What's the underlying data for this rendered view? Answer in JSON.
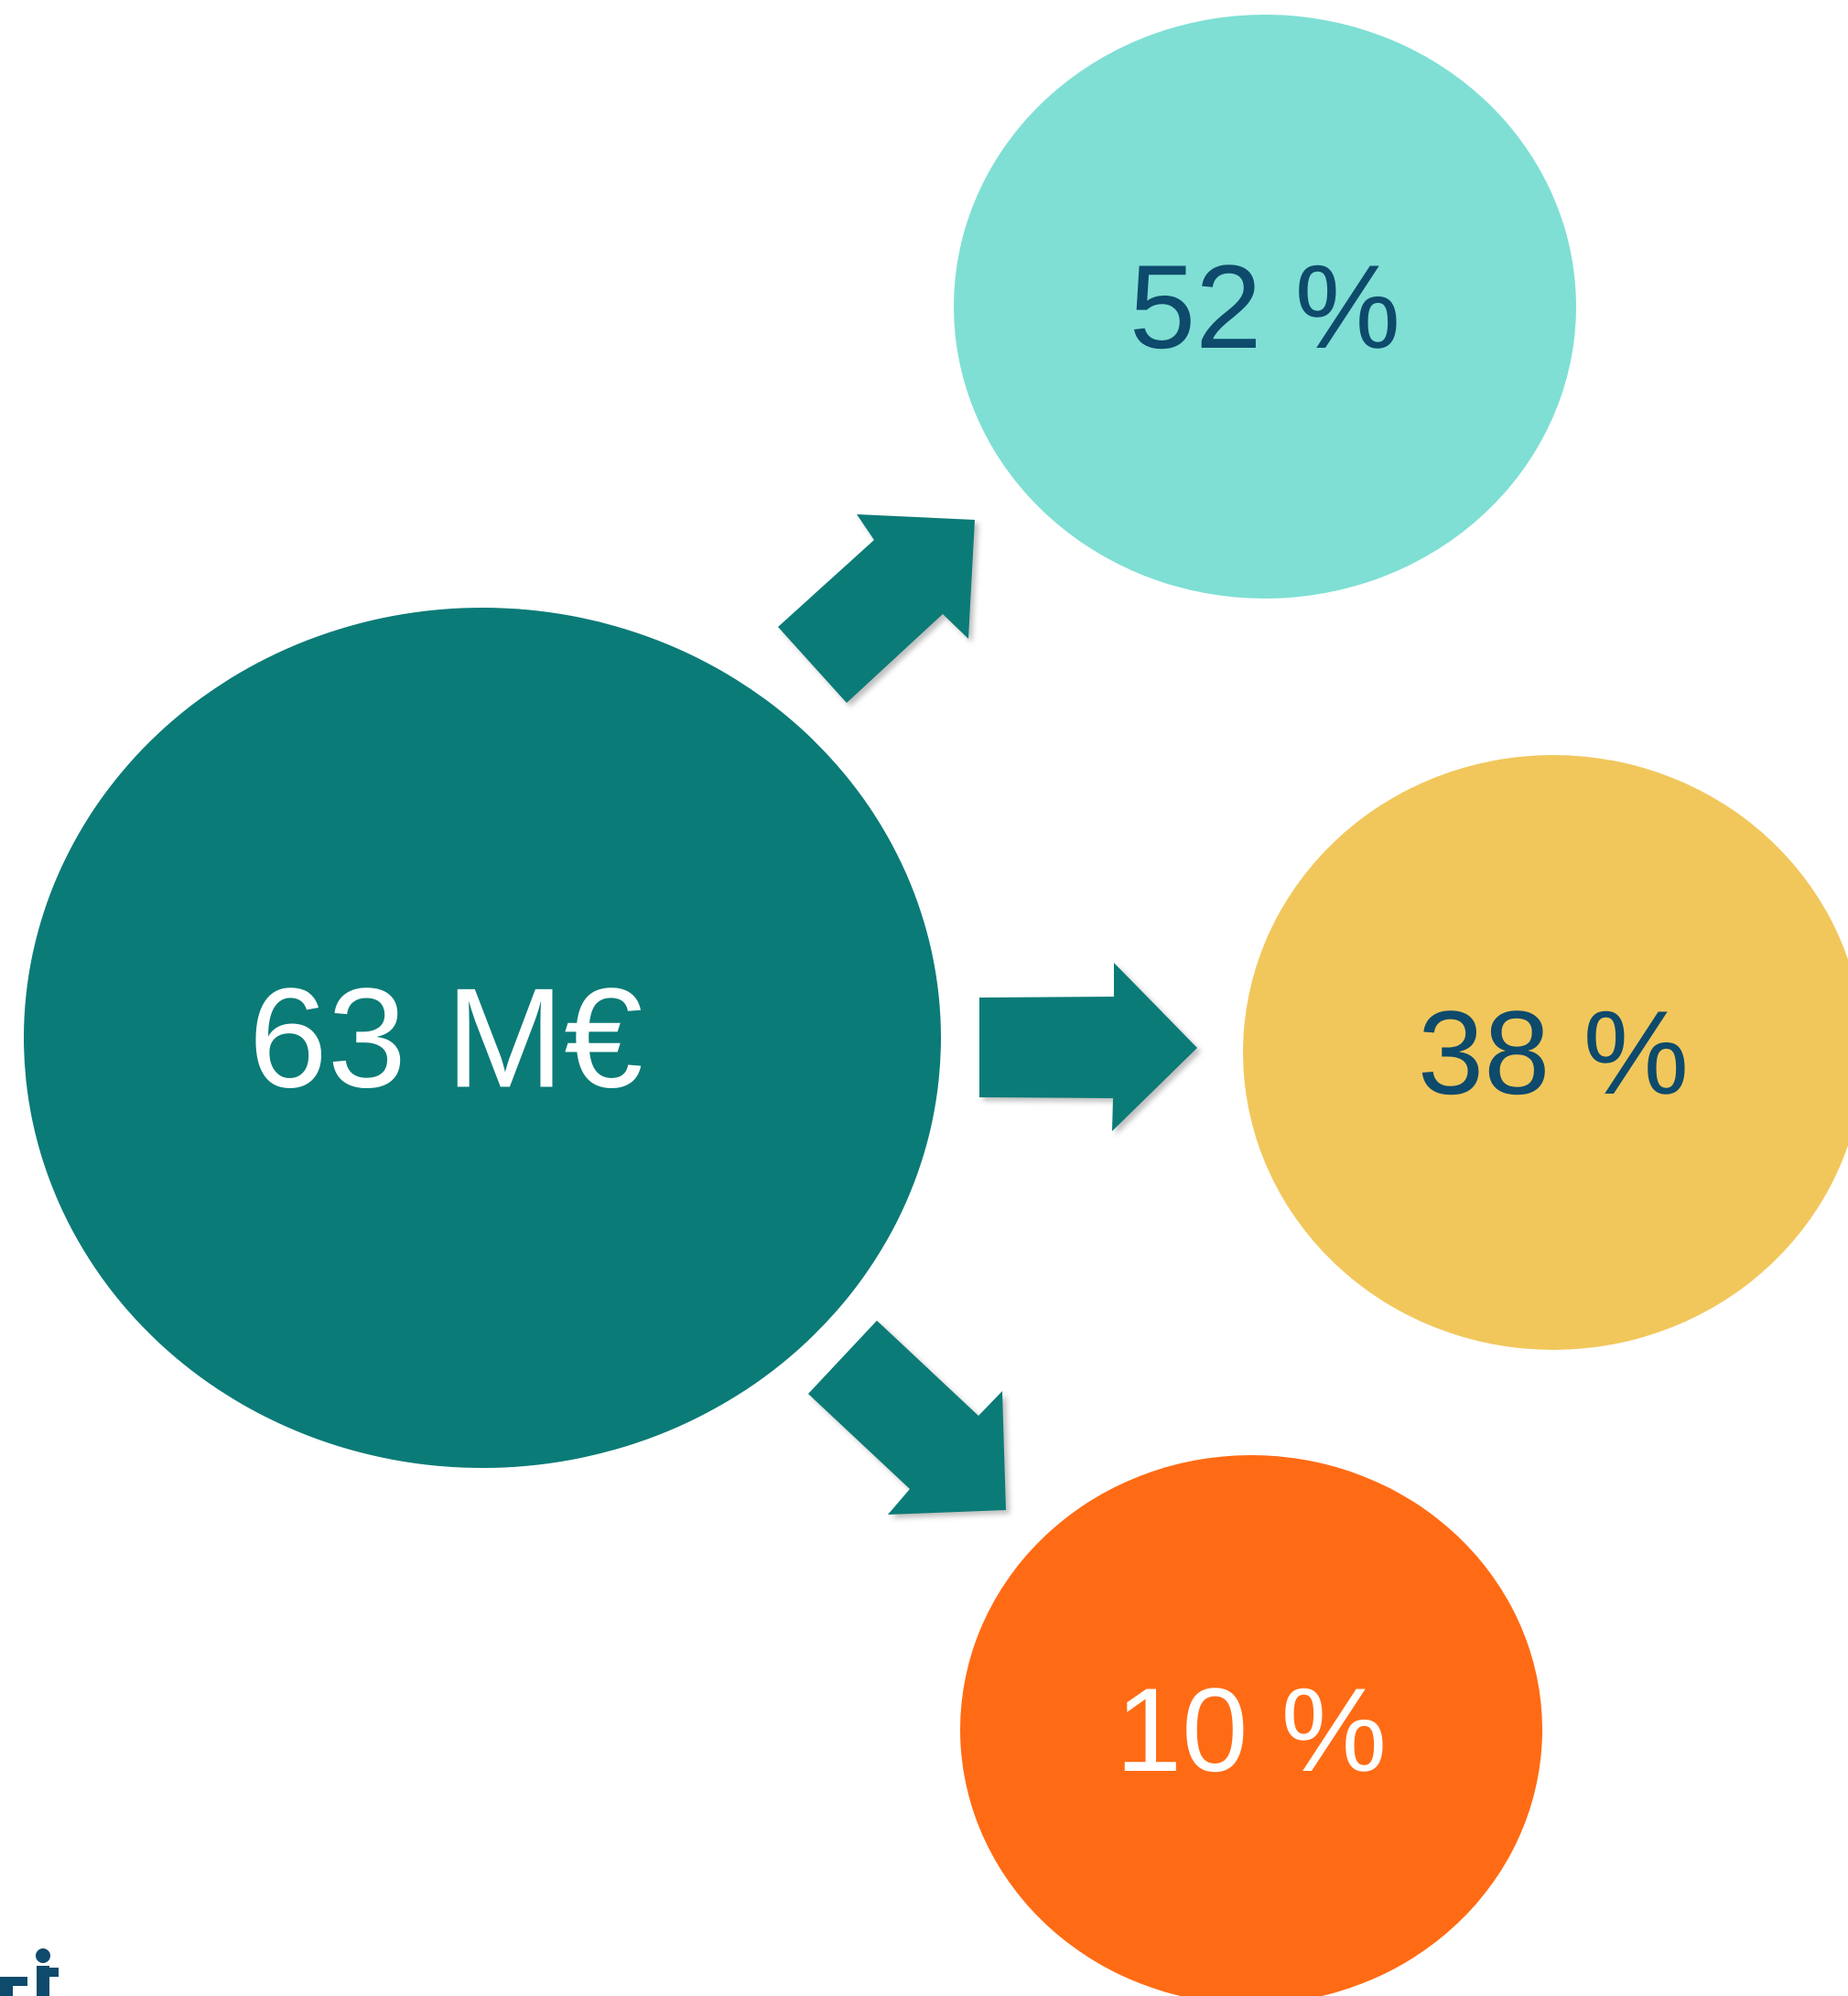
{
  "diagram": {
    "source": {
      "label": "63 M€",
      "fill": "#0b7b77",
      "text_color": "#ffffff"
    },
    "targets": [
      {
        "label": "52 %",
        "fill": "#7fdfd4",
        "text_color": "#0e4a6b"
      },
      {
        "label": "38 %",
        "fill": "#f1c75c",
        "text_color": "#0e4a6b"
      },
      {
        "label": "10 %",
        "fill": "#ff6b14",
        "text_color": "#ffffff"
      }
    ],
    "arrow_color": "#0b7b77",
    "logo_color": "#0e4a6b"
  }
}
